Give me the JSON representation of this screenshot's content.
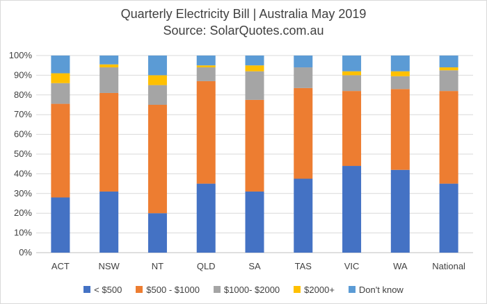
{
  "chart_data": {
    "type": "bar",
    "stacked": true,
    "title": "Quarterly Electricity Bill | Australia May 2019",
    "subtitle": "Source: SolarQuotes.com.au",
    "categories": [
      "ACT",
      "NSW",
      "NT",
      "QLD",
      "SA",
      "TAS",
      "VIC",
      "WA",
      "National"
    ],
    "y_ticks": [
      "0%",
      "10%",
      "20%",
      "30%",
      "40%",
      "50%",
      "60%",
      "70%",
      "80%",
      "90%",
      "100%"
    ],
    "ylim": [
      0,
      100
    ],
    "grid": true,
    "legend_position": "bottom",
    "series": [
      {
        "name": "< $500",
        "color": "#4472C4",
        "values": [
          28,
          31,
          20,
          35,
          31,
          37.5,
          44,
          42,
          35
        ]
      },
      {
        "name": "$500 - $1000",
        "color": "#ED7D31",
        "values": [
          47.5,
          50,
          55,
          52,
          46.5,
          46,
          38,
          41,
          47
        ]
      },
      {
        "name": "$1000- $2000",
        "color": "#A5A5A5",
        "values": [
          10.5,
          13,
          10,
          7,
          14.5,
          10.5,
          8,
          6.5,
          10.5
        ]
      },
      {
        "name": "$2000+",
        "color": "#FFC000",
        "values": [
          5,
          1.5,
          5,
          1,
          3,
          0,
          2,
          2.5,
          1.5
        ]
      },
      {
        "name": "Don't know",
        "color": "#5B9BD5",
        "values": [
          9,
          4.5,
          10,
          5,
          5,
          6,
          8,
          8,
          6
        ]
      }
    ]
  }
}
